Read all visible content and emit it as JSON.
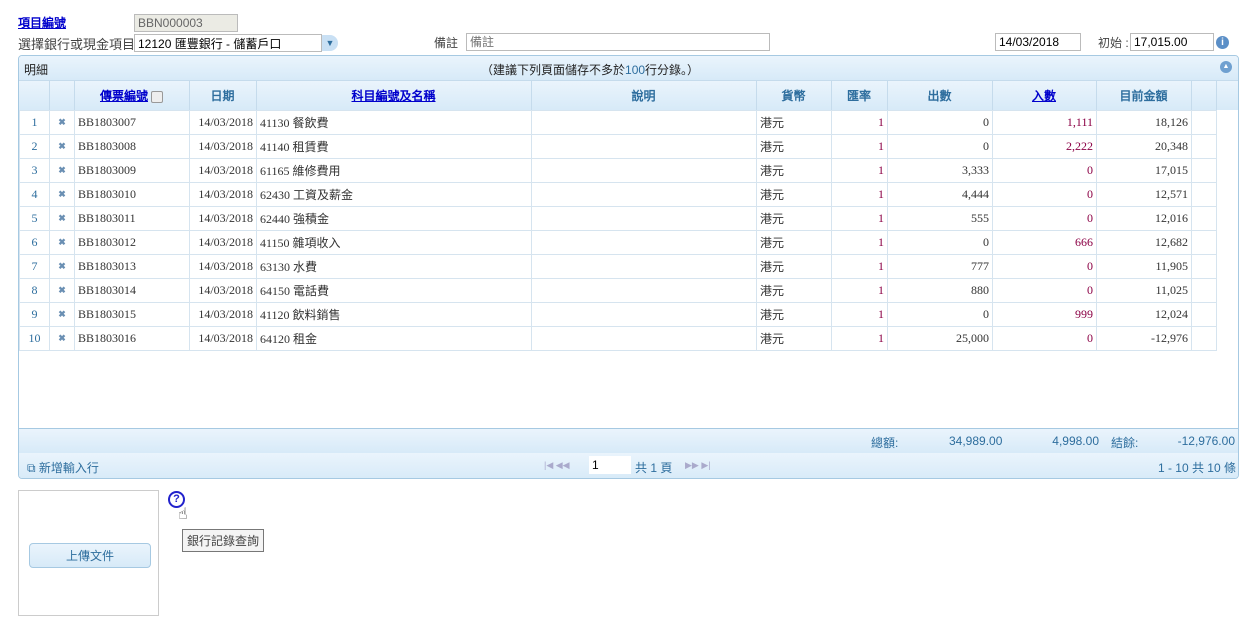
{
  "header": {
    "project_no_label": "項目編號",
    "project_no": "BBN000003",
    "bank_label": "選擇銀行或現金項目",
    "bank_value": "12120 匯豐銀行 - 儲蓄戶口",
    "remark_label": "備註",
    "remark_placeholder": "備註",
    "date": "14/03/2018",
    "opening_label": "初始 :",
    "opening_value": "17,015.00"
  },
  "grid": {
    "title": "明細",
    "notice_prefix": "（建議下列頁面儲存不多於",
    "notice_num": "100",
    "notice_suffix": "行分錄。）",
    "columns": [
      "傳票編號",
      "日期",
      "科目編號及名稱",
      "說明",
      "貨幣",
      "匯率",
      "出數",
      "入數",
      "目前金額"
    ],
    "rows": [
      [
        "1",
        "BB1803007",
        "14/03/2018",
        "41130 餐飲費",
        "",
        "港元",
        "1",
        "0",
        "1,111",
        "18,126"
      ],
      [
        "2",
        "BB1803008",
        "14/03/2018",
        "41140 租賃費",
        "",
        "港元",
        "1",
        "0",
        "2,222",
        "20,348"
      ],
      [
        "3",
        "BB1803009",
        "14/03/2018",
        "61165 維修費用",
        "",
        "港元",
        "1",
        "3,333",
        "0",
        "17,015"
      ],
      [
        "4",
        "BB1803010",
        "14/03/2018",
        "62430 工資及薪金",
        "",
        "港元",
        "1",
        "4,444",
        "0",
        "12,571"
      ],
      [
        "5",
        "BB1803011",
        "14/03/2018",
        "62440 強積金",
        "",
        "港元",
        "1",
        "555",
        "0",
        "12,016"
      ],
      [
        "6",
        "BB1803012",
        "14/03/2018",
        "41150 雜項收入",
        "",
        "港元",
        "1",
        "0",
        "666",
        "12,682"
      ],
      [
        "7",
        "BB1803013",
        "14/03/2018",
        "63130 水費",
        "",
        "港元",
        "1",
        "777",
        "0",
        "11,905"
      ],
      [
        "8",
        "BB1803014",
        "14/03/2018",
        "64150 電話費",
        "",
        "港元",
        "1",
        "880",
        "0",
        "11,025"
      ],
      [
        "9",
        "BB1803015",
        "14/03/2018",
        "41120 飲料銷售",
        "",
        "港元",
        "1",
        "0",
        "999",
        "12,024"
      ],
      [
        "10",
        "BB1803016",
        "14/03/2018",
        "64120 租金",
        "",
        "港元",
        "1",
        "25,000",
        "0",
        "-12,976"
      ]
    ],
    "summary": {
      "total_label": "總額:",
      "total_out": "34,989.00",
      "total_in": "4,998.00",
      "balance_label": "結餘:",
      "balance": "-12,976.00"
    },
    "pager": {
      "add_row": "新增輸入行",
      "page": "1",
      "total_pages": "共 1 頁",
      "range": "1 - 10 共 10 條"
    }
  },
  "upload_label": "上傳文件",
  "tooltip": "銀行記錄查詢"
}
